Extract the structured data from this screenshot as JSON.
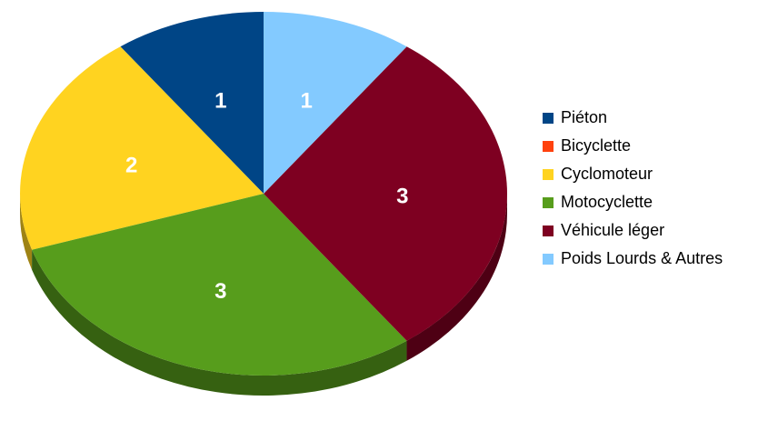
{
  "chart_data": {
    "type": "pie",
    "categories": [
      "Piéton",
      "Bicyclette",
      "Cyclomoteur",
      "Motocyclette",
      "Véhicule léger",
      "Poids Lourds & Autres"
    ],
    "values": [
      1,
      0,
      2,
      3,
      3,
      1
    ],
    "colors": [
      "#004586",
      "#ff420e",
      "#ffd320",
      "#579d1c",
      "#7e0021",
      "#83caff"
    ],
    "legend": "right"
  }
}
